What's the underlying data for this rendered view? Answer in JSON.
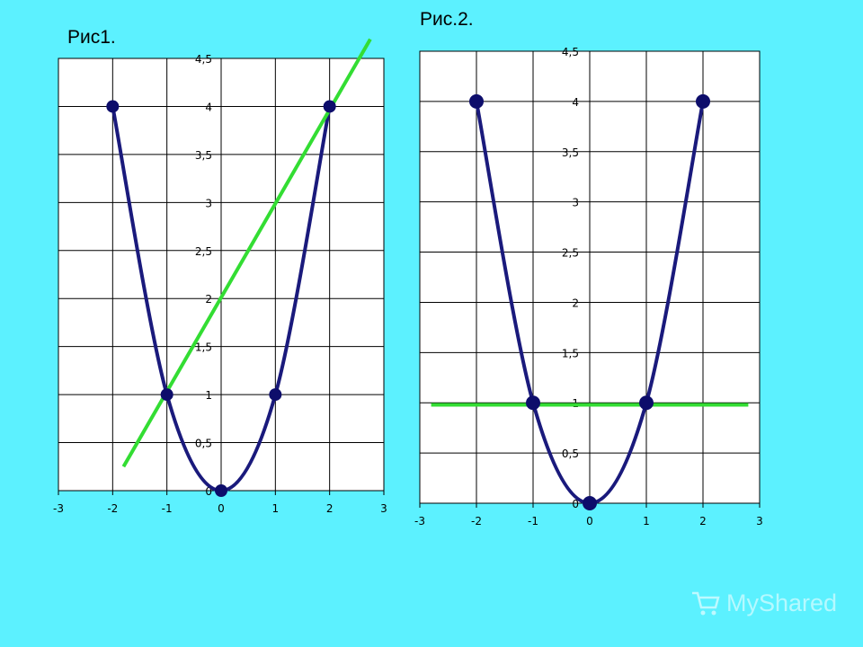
{
  "figures": {
    "fig1_title": "Рис1.",
    "fig2_title": "Рис.2."
  },
  "watermark": {
    "text": "MyShared",
    "icon": "cart-icon"
  },
  "colors": {
    "background": "#5CF1FF",
    "plot_area": "#FFFFFF",
    "curve": "#1A1A7C",
    "marker": "#0D0D6B",
    "green_line": "#33DD33",
    "grid": "#000000"
  },
  "chart_data": [
    {
      "type": "scatter",
      "x": [
        -2,
        -1,
        0,
        1,
        2
      ],
      "y": [
        4,
        1,
        0,
        1,
        4
      ],
      "smooth": true,
      "xlim": [
        -3,
        3
      ],
      "ylim": [
        0,
        4.5
      ],
      "xticks": [
        "-3",
        "-2",
        "-1",
        "0",
        "1",
        "2",
        "3"
      ],
      "yticks": [
        "0",
        "0,5",
        "1",
        "1,5",
        "2",
        "2,5",
        "3",
        "3,5",
        "4",
        "4,5"
      ],
      "grid": true,
      "overlay_line": {
        "x": [
          -1.8,
          2.75
        ],
        "y": [
          0.25,
          4.7
        ]
      }
    },
    {
      "type": "scatter",
      "x": [
        -2,
        -1,
        0,
        1,
        2
      ],
      "y": [
        4,
        1,
        0,
        1,
        4
      ],
      "smooth": true,
      "xlim": [
        -3,
        3
      ],
      "ylim": [
        0,
        4.5
      ],
      "xticks": [
        "-3",
        "-2",
        "-1",
        "0",
        "1",
        "2",
        "3"
      ],
      "yticks": [
        "0",
        "0,5",
        "1",
        "1,5",
        "2",
        "2,5",
        "3",
        "3,5",
        "4",
        "4,5"
      ],
      "grid": true,
      "overlay_line": {
        "x": [
          -2.8,
          2.8
        ],
        "y": [
          0.98,
          0.98
        ]
      }
    }
  ]
}
